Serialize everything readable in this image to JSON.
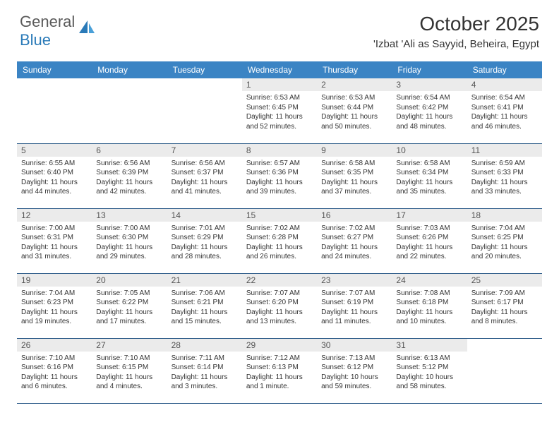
{
  "brand": {
    "textGray": "General",
    "textBlue": "Blue"
  },
  "title": "October 2025",
  "location": "'Izbat 'Ali as Sayyid, Beheira, Egypt",
  "colors": {
    "headerBg": "#3b84c4",
    "headerText": "#ffffff",
    "dayNumBg": "#ebebeb",
    "rowBorder": "#2f5d8a",
    "bodyText": "#333333",
    "logoGray": "#5a5a5a",
    "logoBlue": "#2a7ab8"
  },
  "columns": [
    "Sunday",
    "Monday",
    "Tuesday",
    "Wednesday",
    "Thursday",
    "Friday",
    "Saturday"
  ],
  "weeks": [
    [
      null,
      null,
      null,
      {
        "n": "1",
        "sr": "6:53 AM",
        "ss": "6:45 PM",
        "dl": "11 hours and 52 minutes."
      },
      {
        "n": "2",
        "sr": "6:53 AM",
        "ss": "6:44 PM",
        "dl": "11 hours and 50 minutes."
      },
      {
        "n": "3",
        "sr": "6:54 AM",
        "ss": "6:42 PM",
        "dl": "11 hours and 48 minutes."
      },
      {
        "n": "4",
        "sr": "6:54 AM",
        "ss": "6:41 PM",
        "dl": "11 hours and 46 minutes."
      }
    ],
    [
      {
        "n": "5",
        "sr": "6:55 AM",
        "ss": "6:40 PM",
        "dl": "11 hours and 44 minutes."
      },
      {
        "n": "6",
        "sr": "6:56 AM",
        "ss": "6:39 PM",
        "dl": "11 hours and 42 minutes."
      },
      {
        "n": "7",
        "sr": "6:56 AM",
        "ss": "6:37 PM",
        "dl": "11 hours and 41 minutes."
      },
      {
        "n": "8",
        "sr": "6:57 AM",
        "ss": "6:36 PM",
        "dl": "11 hours and 39 minutes."
      },
      {
        "n": "9",
        "sr": "6:58 AM",
        "ss": "6:35 PM",
        "dl": "11 hours and 37 minutes."
      },
      {
        "n": "10",
        "sr": "6:58 AM",
        "ss": "6:34 PM",
        "dl": "11 hours and 35 minutes."
      },
      {
        "n": "11",
        "sr": "6:59 AM",
        "ss": "6:33 PM",
        "dl": "11 hours and 33 minutes."
      }
    ],
    [
      {
        "n": "12",
        "sr": "7:00 AM",
        "ss": "6:31 PM",
        "dl": "11 hours and 31 minutes."
      },
      {
        "n": "13",
        "sr": "7:00 AM",
        "ss": "6:30 PM",
        "dl": "11 hours and 29 minutes."
      },
      {
        "n": "14",
        "sr": "7:01 AM",
        "ss": "6:29 PM",
        "dl": "11 hours and 28 minutes."
      },
      {
        "n": "15",
        "sr": "7:02 AM",
        "ss": "6:28 PM",
        "dl": "11 hours and 26 minutes."
      },
      {
        "n": "16",
        "sr": "7:02 AM",
        "ss": "6:27 PM",
        "dl": "11 hours and 24 minutes."
      },
      {
        "n": "17",
        "sr": "7:03 AM",
        "ss": "6:26 PM",
        "dl": "11 hours and 22 minutes."
      },
      {
        "n": "18",
        "sr": "7:04 AM",
        "ss": "6:25 PM",
        "dl": "11 hours and 20 minutes."
      }
    ],
    [
      {
        "n": "19",
        "sr": "7:04 AM",
        "ss": "6:23 PM",
        "dl": "11 hours and 19 minutes."
      },
      {
        "n": "20",
        "sr": "7:05 AM",
        "ss": "6:22 PM",
        "dl": "11 hours and 17 minutes."
      },
      {
        "n": "21",
        "sr": "7:06 AM",
        "ss": "6:21 PM",
        "dl": "11 hours and 15 minutes."
      },
      {
        "n": "22",
        "sr": "7:07 AM",
        "ss": "6:20 PM",
        "dl": "11 hours and 13 minutes."
      },
      {
        "n": "23",
        "sr": "7:07 AM",
        "ss": "6:19 PM",
        "dl": "11 hours and 11 minutes."
      },
      {
        "n": "24",
        "sr": "7:08 AM",
        "ss": "6:18 PM",
        "dl": "11 hours and 10 minutes."
      },
      {
        "n": "25",
        "sr": "7:09 AM",
        "ss": "6:17 PM",
        "dl": "11 hours and 8 minutes."
      }
    ],
    [
      {
        "n": "26",
        "sr": "7:10 AM",
        "ss": "6:16 PM",
        "dl": "11 hours and 6 minutes."
      },
      {
        "n": "27",
        "sr": "7:10 AM",
        "ss": "6:15 PM",
        "dl": "11 hours and 4 minutes."
      },
      {
        "n": "28",
        "sr": "7:11 AM",
        "ss": "6:14 PM",
        "dl": "11 hours and 3 minutes."
      },
      {
        "n": "29",
        "sr": "7:12 AM",
        "ss": "6:13 PM",
        "dl": "11 hours and 1 minute."
      },
      {
        "n": "30",
        "sr": "7:13 AM",
        "ss": "6:12 PM",
        "dl": "10 hours and 59 minutes."
      },
      {
        "n": "31",
        "sr": "6:13 AM",
        "ss": "5:12 PM",
        "dl": "10 hours and 58 minutes."
      },
      null
    ]
  ],
  "labels": {
    "sunrise": "Sunrise:",
    "sunset": "Sunset:",
    "daylight": "Daylight:"
  }
}
